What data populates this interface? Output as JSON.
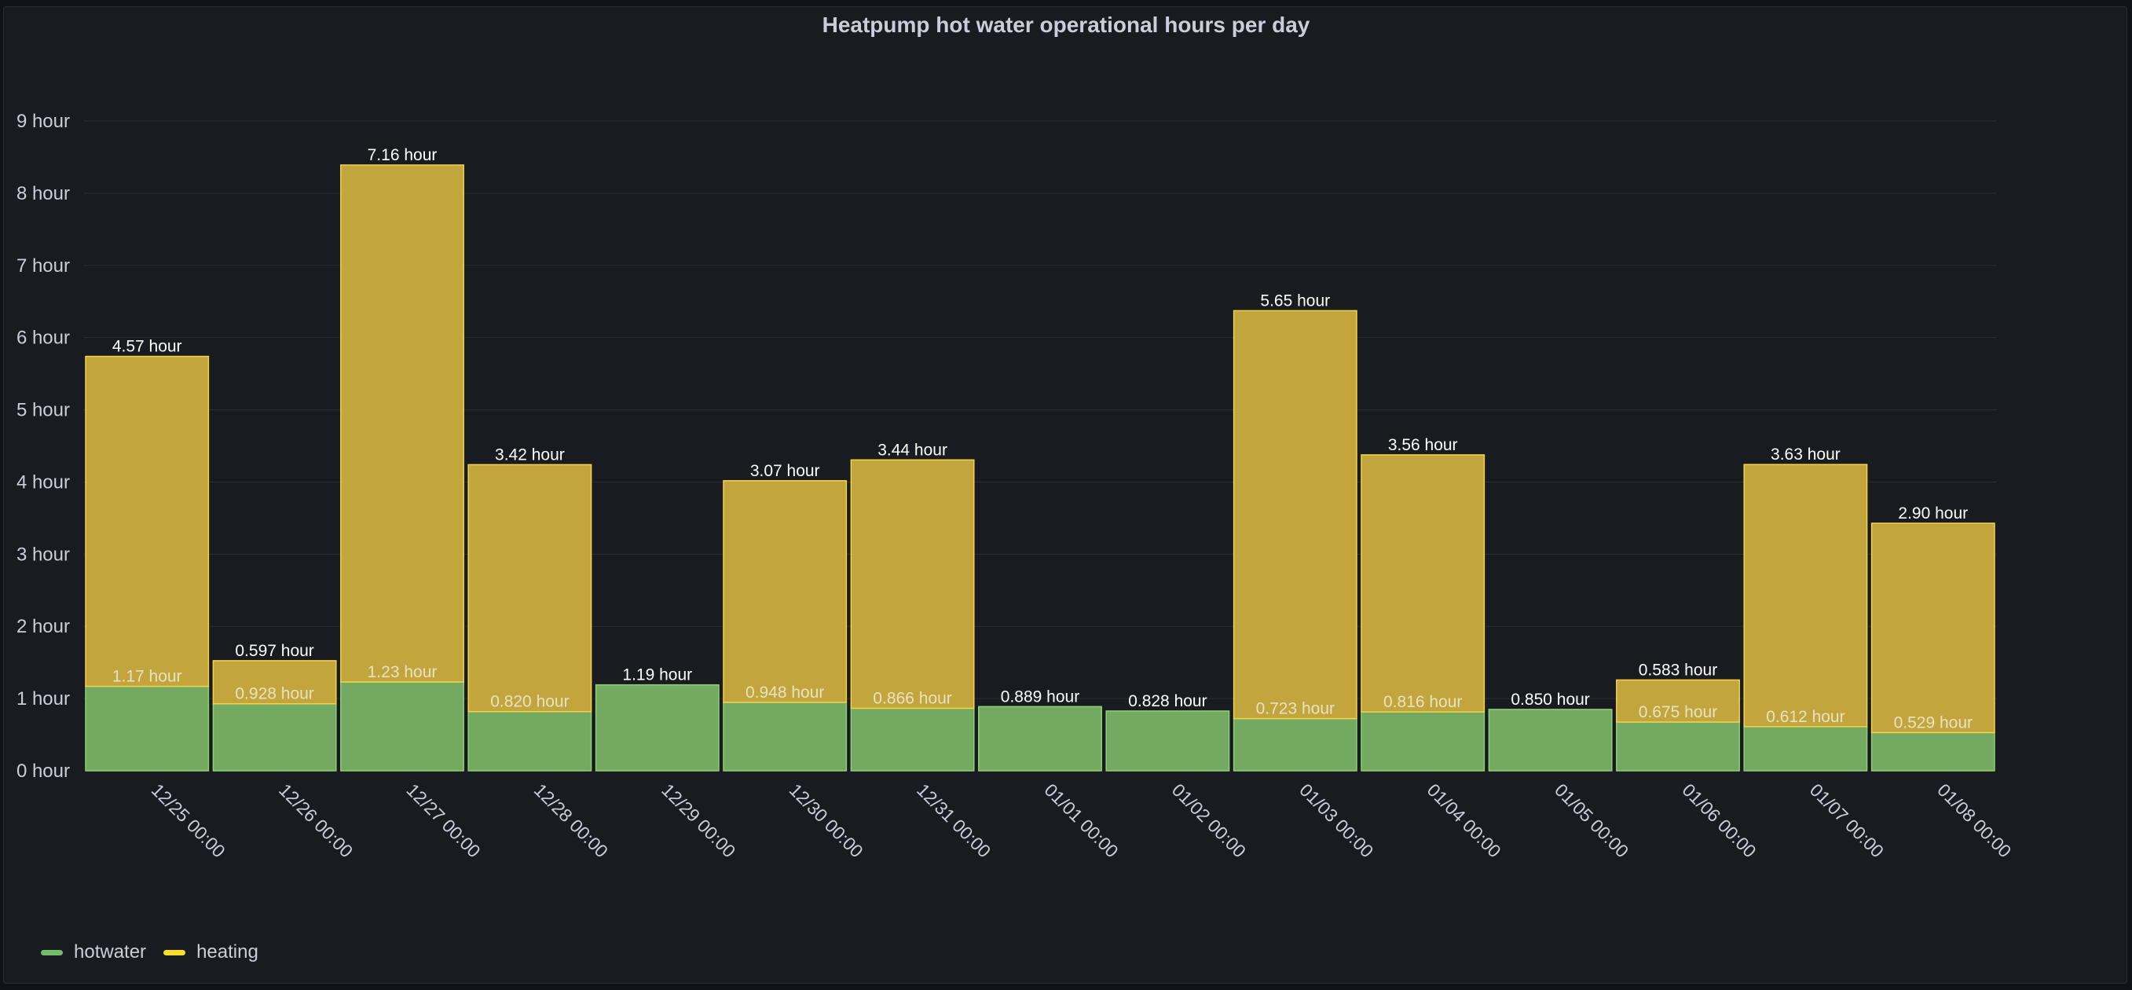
{
  "panel": {
    "title": "Heatpump hot water operational hours per day"
  },
  "colors": {
    "background": "#181b1f",
    "hotwater_fill": "#73a961",
    "hotwater_stroke": "#8fd175",
    "heating_fill": "#c2a53c",
    "heating_stroke": "#f5d249",
    "grid": "#2b2e33",
    "text": "#ccccdc"
  },
  "legend": {
    "items": [
      {
        "name": "hotwater",
        "color": "#73bf69"
      },
      {
        "name": "heating",
        "color": "#fade2a"
      }
    ]
  },
  "chart_data": {
    "type": "bar",
    "stacked": true,
    "title": "Heatpump hot water operational hours per day",
    "xlabel": "",
    "ylabel": "",
    "ylim": [
      0,
      9
    ],
    "y_unit": "hour",
    "yticks": [
      "0 hour",
      "1 hour",
      "2 hour",
      "3 hour",
      "4 hour",
      "5 hour",
      "6 hour",
      "7 hour",
      "8 hour",
      "9 hour"
    ],
    "categories": [
      "12/25 00:00",
      "12/26 00:00",
      "12/27 00:00",
      "12/28 00:00",
      "12/29 00:00",
      "12/30 00:00",
      "12/31 00:00",
      "01/01 00:00",
      "01/02 00:00",
      "01/03 00:00",
      "01/04 00:00",
      "01/05 00:00",
      "01/06 00:00",
      "01/07 00:00",
      "01/08 00:00"
    ],
    "series": [
      {
        "name": "hotwater",
        "values": [
          1.17,
          0.928,
          1.23,
          0.82,
          1.19,
          0.948,
          0.866,
          0.889,
          0.828,
          0.723,
          0.816,
          0.85,
          0.675,
          0.612,
          0.529
        ],
        "labels": [
          "1.17 hour",
          "0.928 hour",
          "1.23 hour",
          "0.820 hour",
          "1.19 hour",
          "0.948 hour",
          "0.866 hour",
          "0.889 hour",
          "0.828 hour",
          "0.723 hour",
          "0.816 hour",
          "0.850 hour",
          "0.675 hour",
          "0.612 hour",
          "0.529 hour"
        ]
      },
      {
        "name": "heating",
        "values": [
          4.57,
          0.597,
          7.16,
          3.42,
          0,
          3.07,
          3.44,
          0,
          0,
          5.65,
          3.56,
          0,
          0.583,
          3.63,
          2.9
        ],
        "labels": [
          "4.57 hour",
          "0.597 hour",
          "7.16 hour",
          "3.42 hour",
          "",
          "3.07 hour",
          "3.44 hour",
          "",
          "",
          "5.65 hour",
          "3.56 hour",
          "",
          "0.583 hour",
          "3.63 hour",
          "2.90 hour"
        ]
      }
    ],
    "grid": true,
    "legend_position": "bottom-left"
  }
}
